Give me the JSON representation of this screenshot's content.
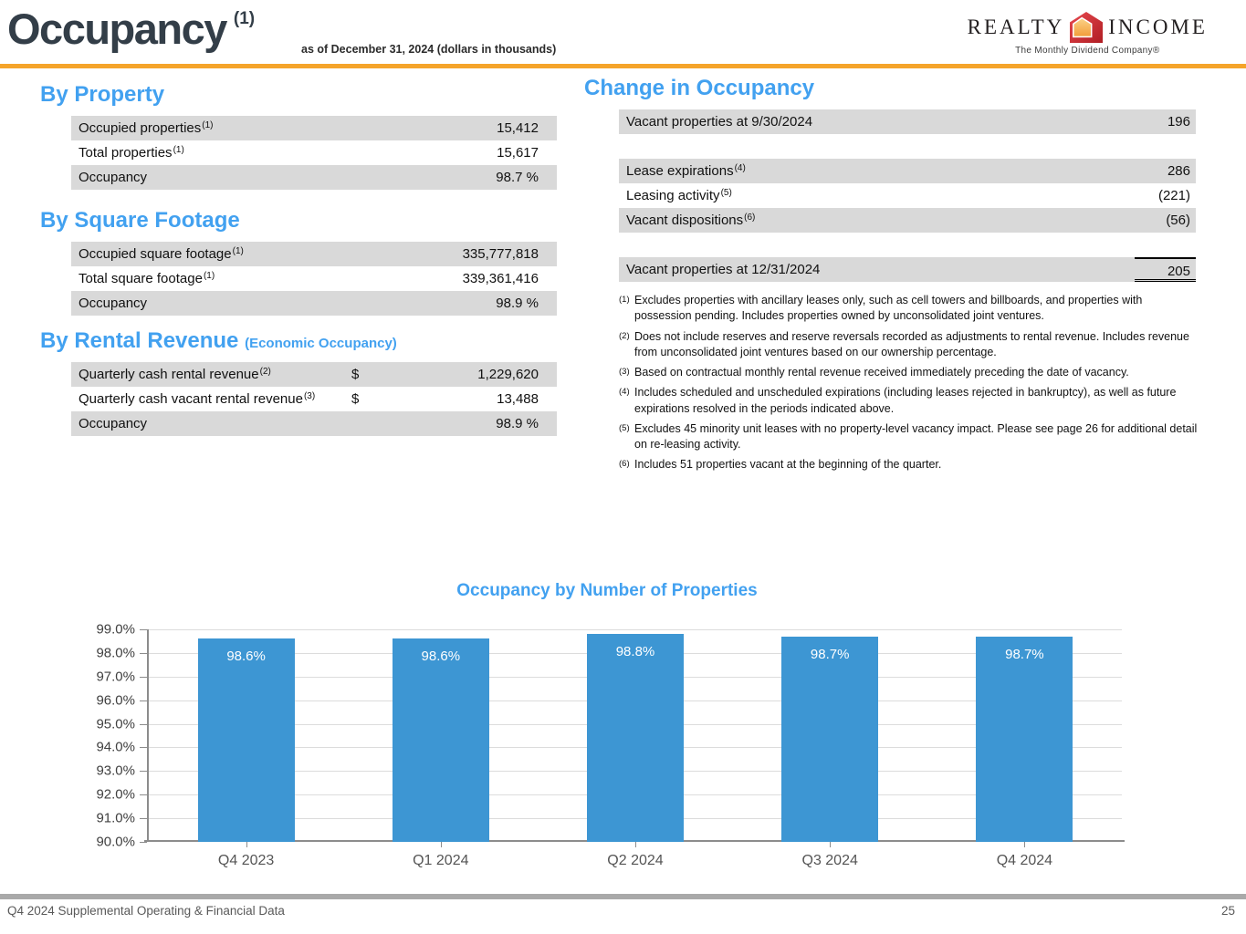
{
  "header": {
    "title": "Occupancy",
    "title_sup": "(1)",
    "subtitle": "as of December 31, 2024 (dollars in thousands)",
    "logo": {
      "word_left": "REALTY",
      "word_right": "INCOME",
      "tagline": "The Monthly Dividend Company®"
    }
  },
  "colors": {
    "accent_orange": "#F5A42A",
    "heading_blue": "#42A1F0",
    "bar_blue": "#3D96D3",
    "row_gray": "#D9D9D9",
    "title_dark": "#333E48"
  },
  "left_sections": [
    {
      "heading": "By Property",
      "heading_note": "",
      "rows": [
        {
          "label": "Occupied properties",
          "sup": "(1)",
          "dollar": "",
          "value": "15,412",
          "shaded": true
        },
        {
          "label": "Total properties",
          "sup": "(1)",
          "dollar": "",
          "value": "15,617",
          "shaded": false
        },
        {
          "label": "Occupancy",
          "sup": "",
          "dollar": "",
          "value": "98.7 %",
          "shaded": true
        }
      ]
    },
    {
      "heading": "By Square Footage",
      "heading_note": "",
      "rows": [
        {
          "label": "Occupied square footage",
          "sup": "(1)",
          "dollar": "",
          "value": "335,777,818",
          "shaded": true
        },
        {
          "label": "Total square footage",
          "sup": "(1)",
          "dollar": "",
          "value": "339,361,416",
          "shaded": false
        },
        {
          "label": "Occupancy",
          "sup": "",
          "dollar": "",
          "value": "98.9 %",
          "shaded": true
        }
      ]
    },
    {
      "heading": "By Rental Revenue",
      "heading_note": "(Economic Occupancy)",
      "rows": [
        {
          "label": "Quarterly cash rental revenue",
          "sup": "(2)",
          "dollar": "$",
          "value": "1,229,620",
          "shaded": true
        },
        {
          "label": "Quarterly cash vacant rental revenue",
          "sup": "(3)",
          "dollar": "$",
          "value": "13,488",
          "shaded": false
        },
        {
          "label": "Occupancy",
          "sup": "",
          "dollar": "",
          "value": "98.9 %",
          "shaded": true
        }
      ]
    }
  ],
  "change_in_occupancy": {
    "heading": "Change in Occupancy",
    "rows": [
      {
        "label": "Vacant properties at 9/30/2024",
        "sup": "",
        "value": "196",
        "shaded": true,
        "spacer_after": true
      },
      {
        "label": "Lease expirations",
        "sup": "(4)",
        "value": "286",
        "shaded": true
      },
      {
        "label": "Leasing activity",
        "sup": "(5)",
        "value": "(221)",
        "shaded": false
      },
      {
        "label": "Vacant dispositions",
        "sup": "(6)",
        "value": "(56)",
        "shaded": true,
        "spacer_after": true
      },
      {
        "label": "Vacant properties at 12/31/2024",
        "sup": "",
        "value": "205",
        "shaded": true,
        "total": true
      }
    ]
  },
  "footnotes": [
    {
      "sup": "(1)",
      "text": "Excludes properties with ancillary leases only, such as cell towers and billboards, and properties with possession pending. Includes properties owned by unconsolidated joint ventures."
    },
    {
      "sup": "(2)",
      "text": "Does not include reserves and reserve reversals recorded as adjustments to rental revenue. Includes revenue from unconsolidated joint ventures based on our ownership percentage."
    },
    {
      "sup": "(3)",
      "text": "Based on contractual monthly rental revenue received immediately preceding the date of vacancy."
    },
    {
      "sup": "(4)",
      "text": "Includes scheduled and unscheduled expirations (including leases rejected in bankruptcy), as well as future expirations resolved in the periods indicated above."
    },
    {
      "sup": "(5)",
      "text": "Excludes 45 minority unit leases with no property-level vacancy impact. Please see page 26 for additional detail on re-leasing activity."
    },
    {
      "sup": "(6)",
      "text": "Includes 51 properties vacant at the beginning of the quarter."
    }
  ],
  "chart_data": {
    "type": "bar",
    "title": "Occupancy by Number of Properties",
    "categories": [
      "Q4 2023",
      "Q1 2024",
      "Q2 2024",
      "Q3 2024",
      "Q4 2024"
    ],
    "values": [
      98.6,
      98.6,
      98.8,
      98.7,
      98.7
    ],
    "bar_labels": [
      "98.6%",
      "98.6%",
      "98.8%",
      "98.7%",
      "98.7%"
    ],
    "ylim": [
      90,
      99
    ],
    "ytick_values": [
      90,
      91,
      92,
      93,
      94,
      95,
      96,
      97,
      98,
      99
    ],
    "ytick_labels": [
      "90.0%",
      "91.0%",
      "92.0%",
      "93.0%",
      "94.0%",
      "95.0%",
      "96.0%",
      "97.0%",
      "98.0%",
      "99.0%"
    ],
    "xlabel": "",
    "ylabel": "",
    "grid": true,
    "legend_position": "none",
    "bar_color": "#3D96D3"
  },
  "footer": {
    "left": "Q4 2024 Supplemental Operating & Financial Data",
    "page": "25"
  }
}
